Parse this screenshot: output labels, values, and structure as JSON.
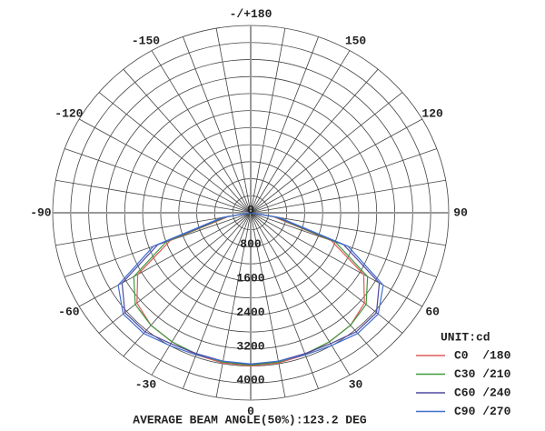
{
  "chart_data": {
    "type": "polar",
    "unit": "UNIT:cd",
    "caption": "AVERAGE BEAM ANGLE(50%):123.2 DEG",
    "rlim": [
      0,
      4400
    ],
    "rticks": [
      0,
      800,
      1600,
      2400,
      3200,
      4000
    ],
    "rgrid": [
      400,
      800,
      1200,
      1600,
      2000,
      2400,
      2800,
      3200,
      3600,
      4000,
      4400
    ],
    "thetaticks": [
      0,
      30,
      60,
      90,
      120,
      150,
      {
        "value": 180,
        "label": "-/+180"
      },
      -150,
      -120,
      -90,
      -60,
      -30
    ],
    "thetagrid": [
      -170,
      -160,
      -150,
      -140,
      -130,
      -120,
      -110,
      -100,
      -90,
      -80,
      -70,
      -60,
      -50,
      -40,
      -30,
      -20,
      -10,
      0,
      10,
      20,
      30,
      40,
      50,
      60,
      70,
      80,
      90,
      100,
      110,
      120,
      130,
      140,
      150,
      160,
      170,
      180
    ],
    "x": [
      -90,
      -80,
      -70,
      -60,
      -50,
      -40,
      -30,
      -20,
      -10,
      0,
      10,
      20,
      30,
      40,
      50,
      60,
      70,
      80,
      90
    ],
    "series": [
      {
        "name": "C0  /180",
        "color": "#e05a5a",
        "values": [
          0,
          500,
          1900,
          2900,
          3300,
          3450,
          3500,
          3550,
          3580,
          3600,
          3580,
          3550,
          3500,
          3450,
          3300,
          2900,
          1900,
          500,
          0
        ]
      },
      {
        "name": "C30 /210",
        "color": "#3d9a3d",
        "values": [
          0,
          550,
          2000,
          3000,
          3350,
          3450,
          3500,
          3530,
          3560,
          3580,
          3560,
          3530,
          3500,
          3450,
          3350,
          3000,
          2000,
          550,
          0
        ]
      },
      {
        "name": "C60 /240",
        "color": "#5048a0",
        "values": [
          0,
          600,
          2200,
          3300,
          3650,
          3650,
          3550,
          3520,
          3540,
          3560,
          3540,
          3520,
          3550,
          3650,
          3650,
          3300,
          2200,
          600,
          0
        ]
      },
      {
        "name": "C90 /270",
        "color": "#3f6fd0",
        "values": [
          0,
          650,
          2300,
          3400,
          3700,
          3700,
          3600,
          3550,
          3540,
          3550,
          3540,
          3550,
          3600,
          3700,
          3700,
          3400,
          2300,
          650,
          0
        ]
      }
    ],
    "legend": "lower right"
  }
}
